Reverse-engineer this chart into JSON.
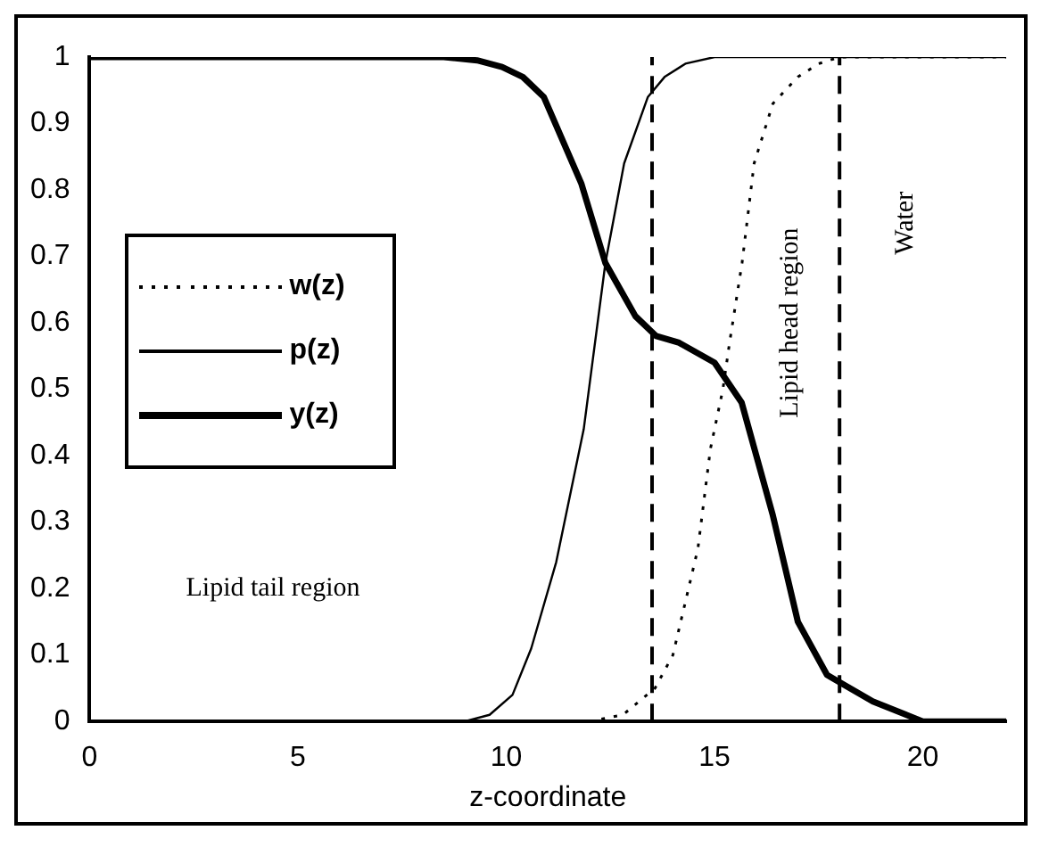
{
  "chart_data": {
    "type": "line",
    "xlabel": "z-coordinate",
    "xlim": [
      0,
      22
    ],
    "xticks": [
      0,
      5,
      10,
      15,
      20
    ],
    "ylim": [
      0,
      1
    ],
    "yticks": [
      0,
      0.1,
      0.2,
      0.3,
      0.4,
      0.5,
      0.6,
      0.7,
      0.8,
      0.9,
      {
        "value": 1,
        "label": "1"
      }
    ],
    "grid": false,
    "legend": "left",
    "marker": "none",
    "series": [
      {
        "name": "w(z)",
        "color": "#000000",
        "line_style": "dotted",
        "x": [
          0,
          5,
          10,
          12,
          12.8,
          13.57,
          14,
          14.6,
          14.9,
          15.2,
          15.36,
          15.66,
          15.95,
          16.4,
          17,
          17.5,
          18,
          20,
          22
        ],
        "values": [
          0,
          0,
          0,
          0,
          0.01,
          0.05,
          0.1,
          0.26,
          0.41,
          0.5,
          0.57,
          0.69,
          0.84,
          0.93,
          0.97,
          0.99,
          1,
          1,
          1
        ]
      },
      {
        "name": "p(z)",
        "color": "#000000",
        "line_style": "solid",
        "x": [
          0,
          5,
          9,
          9.6,
          10.15,
          10.6,
          11.2,
          11.86,
          12.38,
          12.83,
          13.4,
          13.8,
          14.3,
          15,
          18,
          22
        ],
        "values": [
          0,
          0,
          0,
          0.01,
          0.04,
          0.11,
          0.24,
          0.44,
          0.69,
          0.84,
          0.94,
          0.97,
          0.99,
          1,
          1,
          1
        ]
      },
      {
        "name": "y(z)",
        "color": "#000000",
        "line_style": "solid",
        "x": [
          0,
          5,
          8.5,
          9.3,
          9.9,
          10.4,
          10.9,
          11.8,
          12.38,
          13.1,
          13.6,
          14.15,
          15,
          15.65,
          16.4,
          17,
          17.7,
          18.8,
          20,
          22
        ],
        "values": [
          1,
          1,
          1,
          0.995,
          0.985,
          0.97,
          0.94,
          0.81,
          0.69,
          0.61,
          0.58,
          0.57,
          0.54,
          0.48,
          0.31,
          0.15,
          0.07,
          0.03,
          0,
          0
        ]
      }
    ],
    "ref_lines": [
      {
        "axis": "x",
        "value": 13.5,
        "line_style": "dashed",
        "color": "#000000"
      },
      {
        "axis": "x",
        "value": 18,
        "line_style": "dashed",
        "color": "#000000"
      }
    ],
    "annotations": [
      "Lipid tail region",
      "Lipid head region",
      "Water"
    ]
  }
}
